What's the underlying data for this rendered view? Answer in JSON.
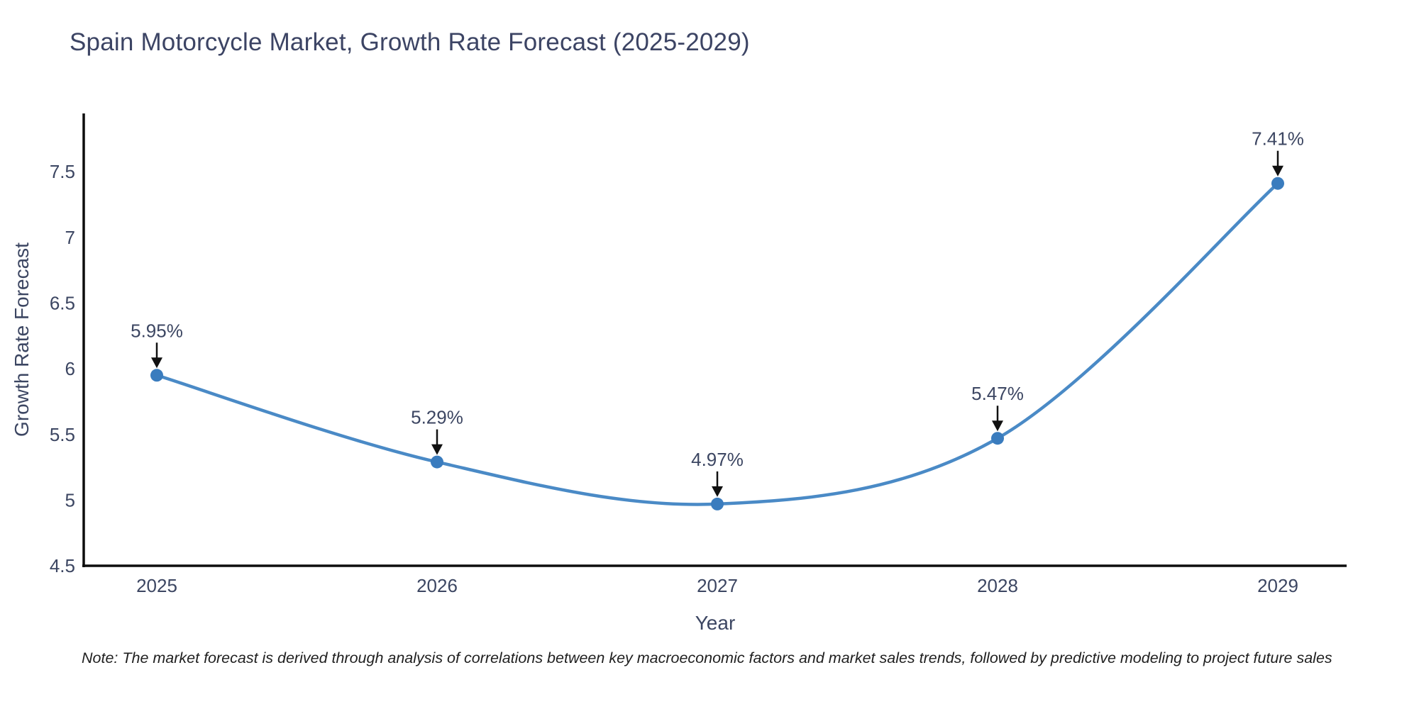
{
  "title": "Spain Motorcycle Market, Growth Rate Forecast (2025-2029)",
  "note": "Note: The market forecast is derived through analysis of correlations between key macroeconomic factors and market sales trends, followed by predictive modeling to project future sales",
  "chart_data": {
    "type": "line",
    "line_shape": "spline",
    "title": "Spain Motorcycle Market, Growth Rate Forecast (2025-2029)",
    "categories": [
      "2025",
      "2026",
      "2027",
      "2028",
      "2029"
    ],
    "values": [
      5.95,
      5.29,
      4.97,
      5.47,
      7.41
    ],
    "point_labels": [
      "5.95%",
      "5.29%",
      "4.97%",
      "5.47%",
      "7.41%"
    ],
    "xlabel": "Year",
    "ylabel": "Growth Rate Forecast",
    "ylim": [
      4.5,
      7.95
    ],
    "ytick_values": [
      4.5,
      5,
      5.5,
      6,
      6.5,
      7,
      7.5
    ],
    "ytick_labels": [
      "4.5",
      "5",
      "5.5",
      "6",
      "6.5",
      "7",
      "7.5"
    ],
    "grid": false,
    "legend": "none",
    "annotations": "black arrows pointing down from each percentage label to its data point",
    "colors": {
      "line": "#4a8ac6",
      "marker": "#3a7cbe",
      "arrow": "#111111",
      "axis_line": "#0d0d0d",
      "text": "#3c4662",
      "note_text": "#1f1f1f",
      "background": "#ffffff"
    }
  }
}
